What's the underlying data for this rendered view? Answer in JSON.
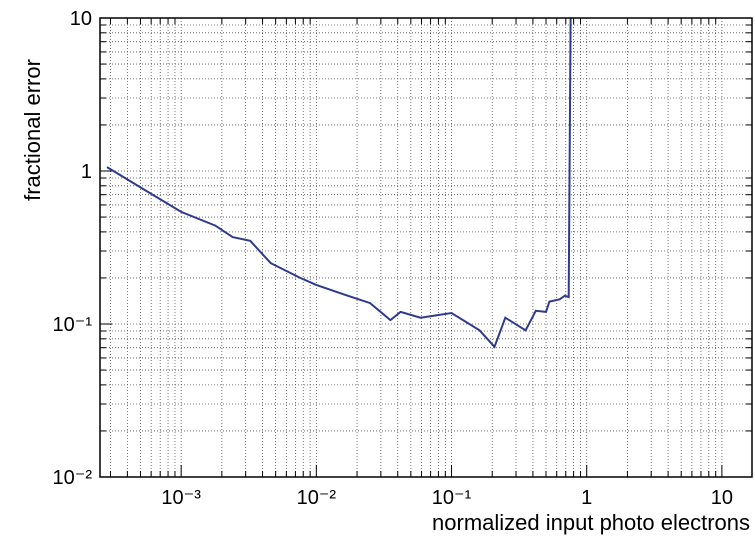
{
  "chart_data": {
    "type": "line",
    "x_label": "normalized input photo electrons",
    "y_label": "fractional error",
    "x_log": true,
    "y_log": true,
    "grid": true,
    "minor_grid": true,
    "xlim": [
      0.000251,
      16.7
    ],
    "ylim": [
      0.01,
      10
    ],
    "xticks": [
      {
        "value": 0.001,
        "label": "10⁻³"
      },
      {
        "value": 0.01,
        "label": "10⁻²"
      },
      {
        "value": 0.1,
        "label": "10⁻¹"
      },
      1,
      10
    ],
    "yticks": [
      {
        "value": 0.01,
        "label": "10⁻²"
      },
      {
        "value": 0.1,
        "label": "10⁻¹"
      },
      1,
      10
    ],
    "series": [
      {
        "color": "#2e3b8c",
        "x": [
          0.000283,
          0.00054,
          0.001,
          0.00179,
          0.0024,
          0.00324,
          0.0046,
          0.0076,
          0.01,
          0.0164,
          0.025,
          0.0353,
          0.042,
          0.059,
          0.1,
          0.161,
          0.208,
          0.25,
          0.353,
          0.42,
          0.5,
          0.53,
          0.63,
          0.69,
          0.736,
          0.76
        ],
        "values": [
          1.06,
          0.75,
          0.54,
          0.44,
          0.37,
          0.35,
          0.25,
          0.2,
          0.18,
          0.155,
          0.137,
          0.106,
          0.12,
          0.11,
          0.118,
          0.091,
          0.071,
          0.11,
          0.091,
          0.122,
          0.12,
          0.14,
          0.145,
          0.153,
          0.15,
          10
        ]
      }
    ]
  }
}
